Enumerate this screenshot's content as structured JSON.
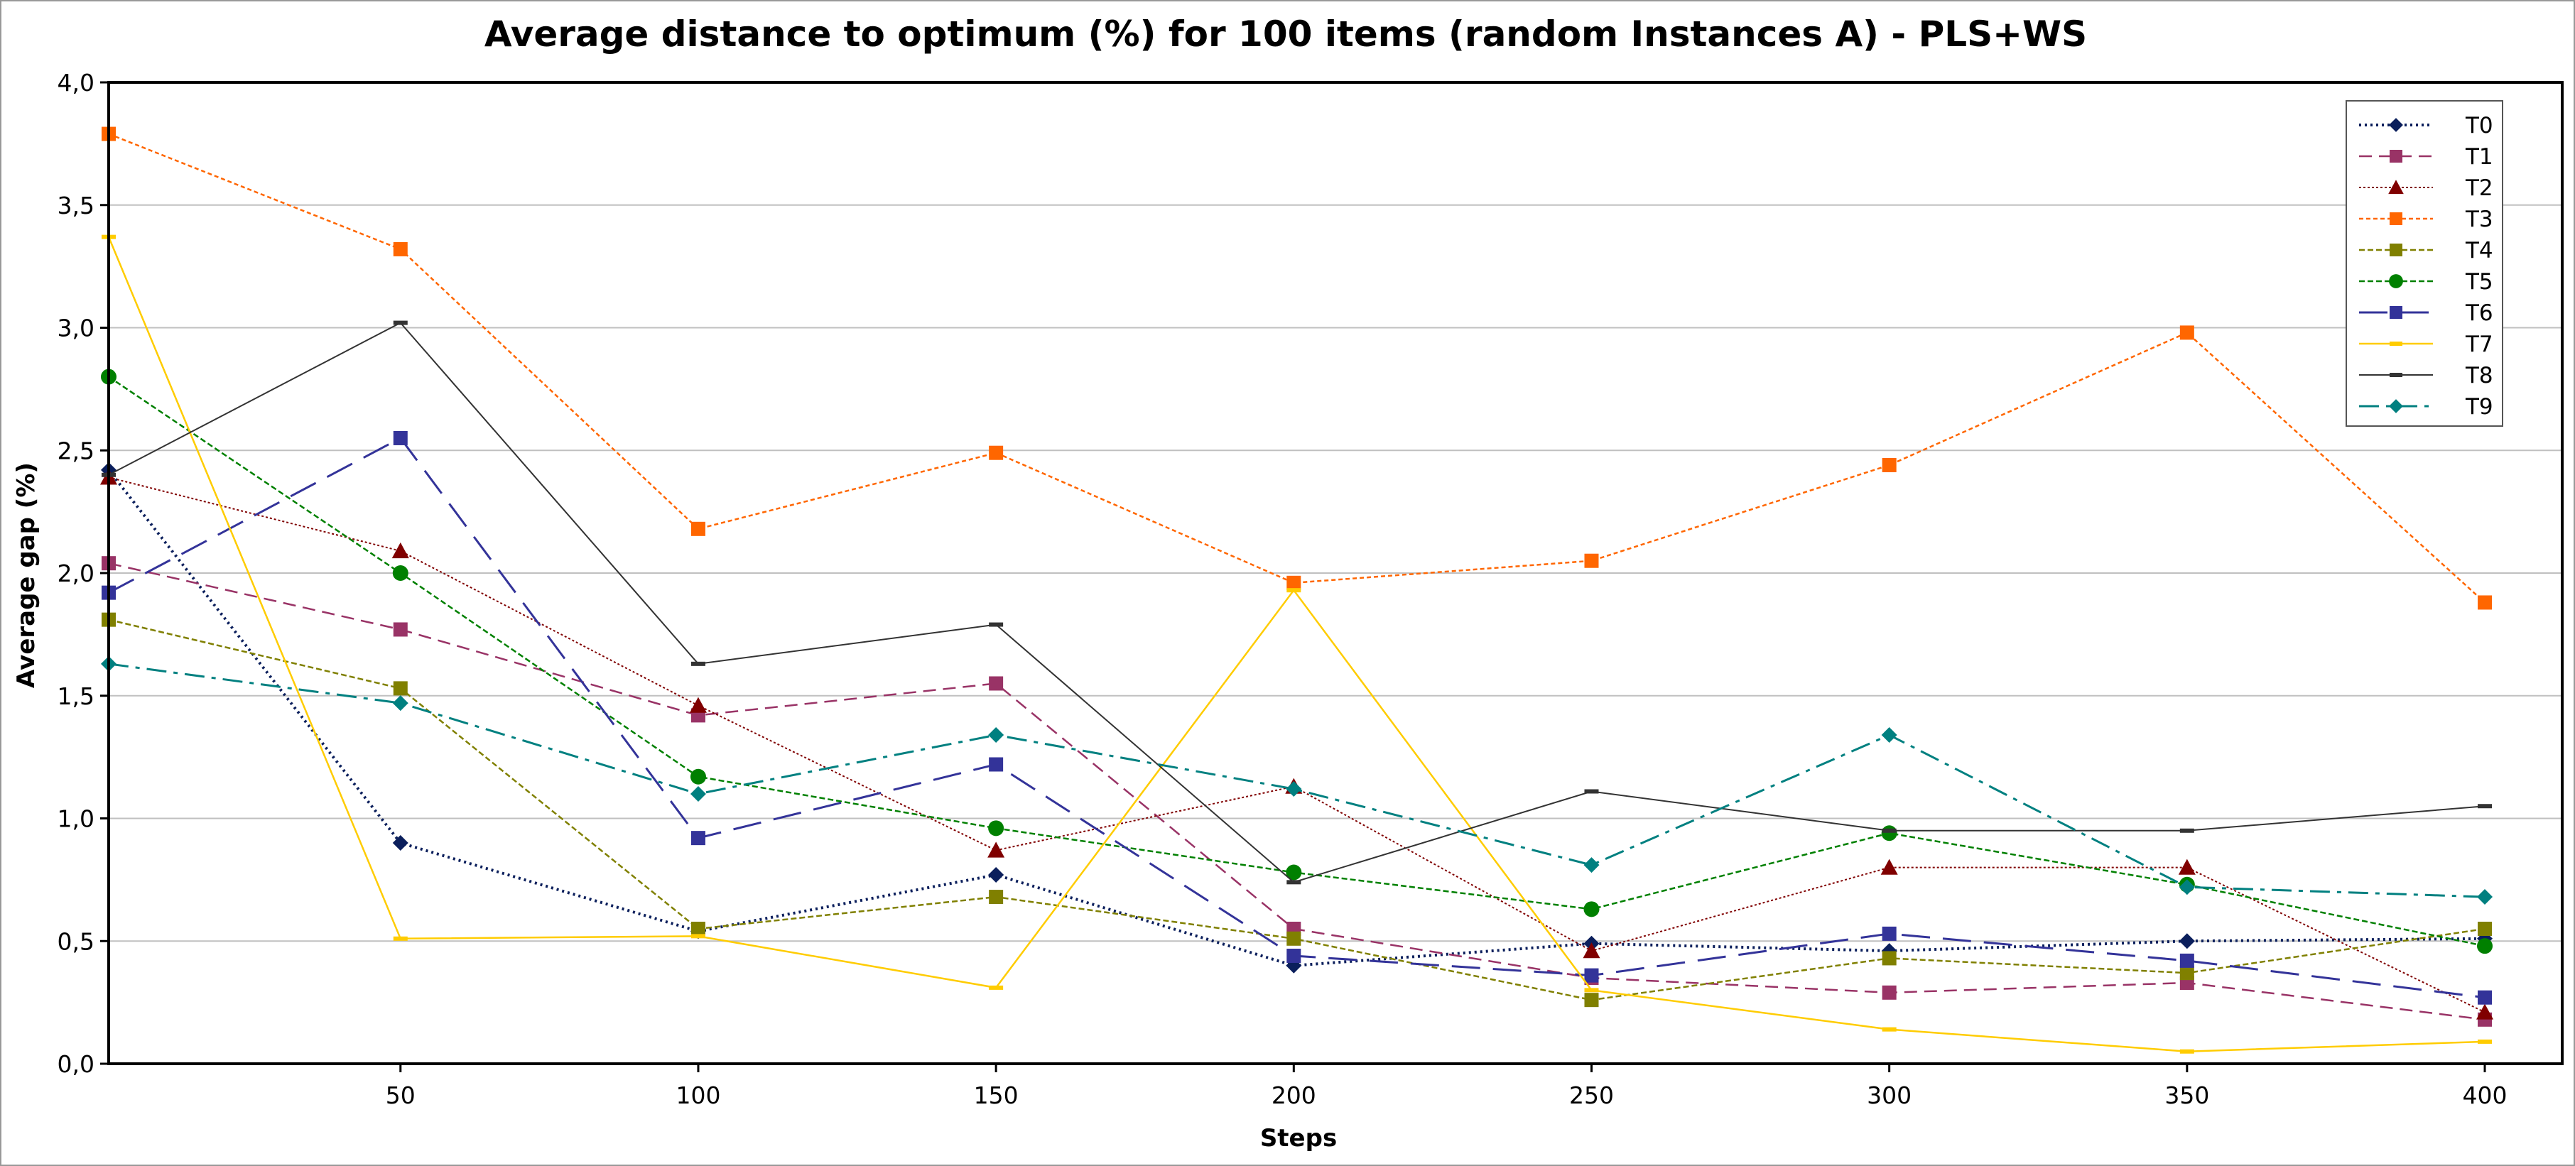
{
  "chart_data": {
    "type": "line",
    "title": "Average distance to optimum (%) for 100 items (random Instances A) - PLS+WS",
    "xlabel": "Steps",
    "ylabel": "Average gap (%)",
    "x": [
      1,
      50,
      100,
      150,
      200,
      250,
      300,
      350,
      400
    ],
    "xticks": [
      50,
      100,
      150,
      200,
      250,
      300,
      350,
      400
    ],
    "xtick_labels": [
      "50",
      "100",
      "150",
      "200",
      "250",
      "300",
      "350",
      "400"
    ],
    "xlim": [
      1,
      413
    ],
    "ylim": [
      0,
      4
    ],
    "yticks": [
      0,
      0.5,
      1.0,
      1.5,
      2.0,
      2.5,
      3.0,
      3.5,
      4.0
    ],
    "ytick_labels": [
      "0,0",
      "0,5",
      "1,0",
      "1,5",
      "2,0",
      "2,5",
      "3,0",
      "3,5",
      "4,0"
    ],
    "grid": "horizontal",
    "legend_position": "top-right",
    "series": [
      {
        "name": "T0",
        "color": "#0b1f5c",
        "dash": "3,5",
        "width": 4,
        "marker": "diamond",
        "values": [
          2.42,
          0.9,
          0.54,
          0.77,
          0.4,
          0.49,
          0.46,
          0.5,
          0.51
        ]
      },
      {
        "name": "T1",
        "color": "#993366",
        "dash": "18,10",
        "width": 2.5,
        "marker": "square",
        "values": [
          2.04,
          1.77,
          1.42,
          1.55,
          0.55,
          0.35,
          0.29,
          0.33,
          0.18
        ]
      },
      {
        "name": "T2",
        "color": "#800000",
        "dash": "3,3",
        "width": 2,
        "marker": "triangle",
        "values": [
          2.39,
          2.09,
          1.46,
          0.87,
          1.13,
          0.46,
          0.8,
          0.8,
          0.21
        ]
      },
      {
        "name": "T3",
        "color": "#ff6600",
        "dash": "6,4",
        "width": 2.5,
        "marker": "square",
        "values": [
          3.79,
          3.32,
          2.18,
          2.49,
          1.96,
          2.05,
          2.44,
          2.98,
          1.88
        ]
      },
      {
        "name": "T4",
        "color": "#808000",
        "dash": "8,4",
        "width": 2.5,
        "marker": "square",
        "values": [
          1.81,
          1.53,
          0.55,
          0.68,
          0.51,
          0.26,
          0.43,
          0.37,
          0.55
        ]
      },
      {
        "name": "T5",
        "color": "#008000",
        "dash": "8,4",
        "width": 2.5,
        "marker": "circle",
        "values": [
          2.8,
          2.0,
          1.17,
          0.96,
          0.78,
          0.63,
          0.94,
          0.73,
          0.48
        ]
      },
      {
        "name": "T6",
        "color": "#333399",
        "dash": "40,18",
        "width": 3,
        "marker": "square",
        "values": [
          1.92,
          2.55,
          0.92,
          1.22,
          0.44,
          0.36,
          0.53,
          0.42,
          0.27
        ]
      },
      {
        "name": "T7",
        "color": "#ffcc00",
        "dash": "",
        "width": 2.5,
        "marker": "dash",
        "values": [
          3.37,
          0.51,
          0.52,
          0.31,
          1.93,
          0.3,
          0.14,
          0.05,
          0.09
        ]
      },
      {
        "name": "T8",
        "color": "#333333",
        "dash": "",
        "width": 2,
        "marker": "dash",
        "values": [
          2.4,
          3.02,
          1.63,
          1.79,
          0.74,
          1.11,
          0.95,
          0.95,
          1.05
        ]
      },
      {
        "name": "T9",
        "color": "#008080",
        "dash": "28,10,6,10",
        "width": 3,
        "marker": "diamond",
        "values": [
          1.63,
          1.47,
          1.1,
          1.34,
          1.12,
          0.81,
          1.34,
          0.72,
          0.68
        ]
      }
    ]
  }
}
